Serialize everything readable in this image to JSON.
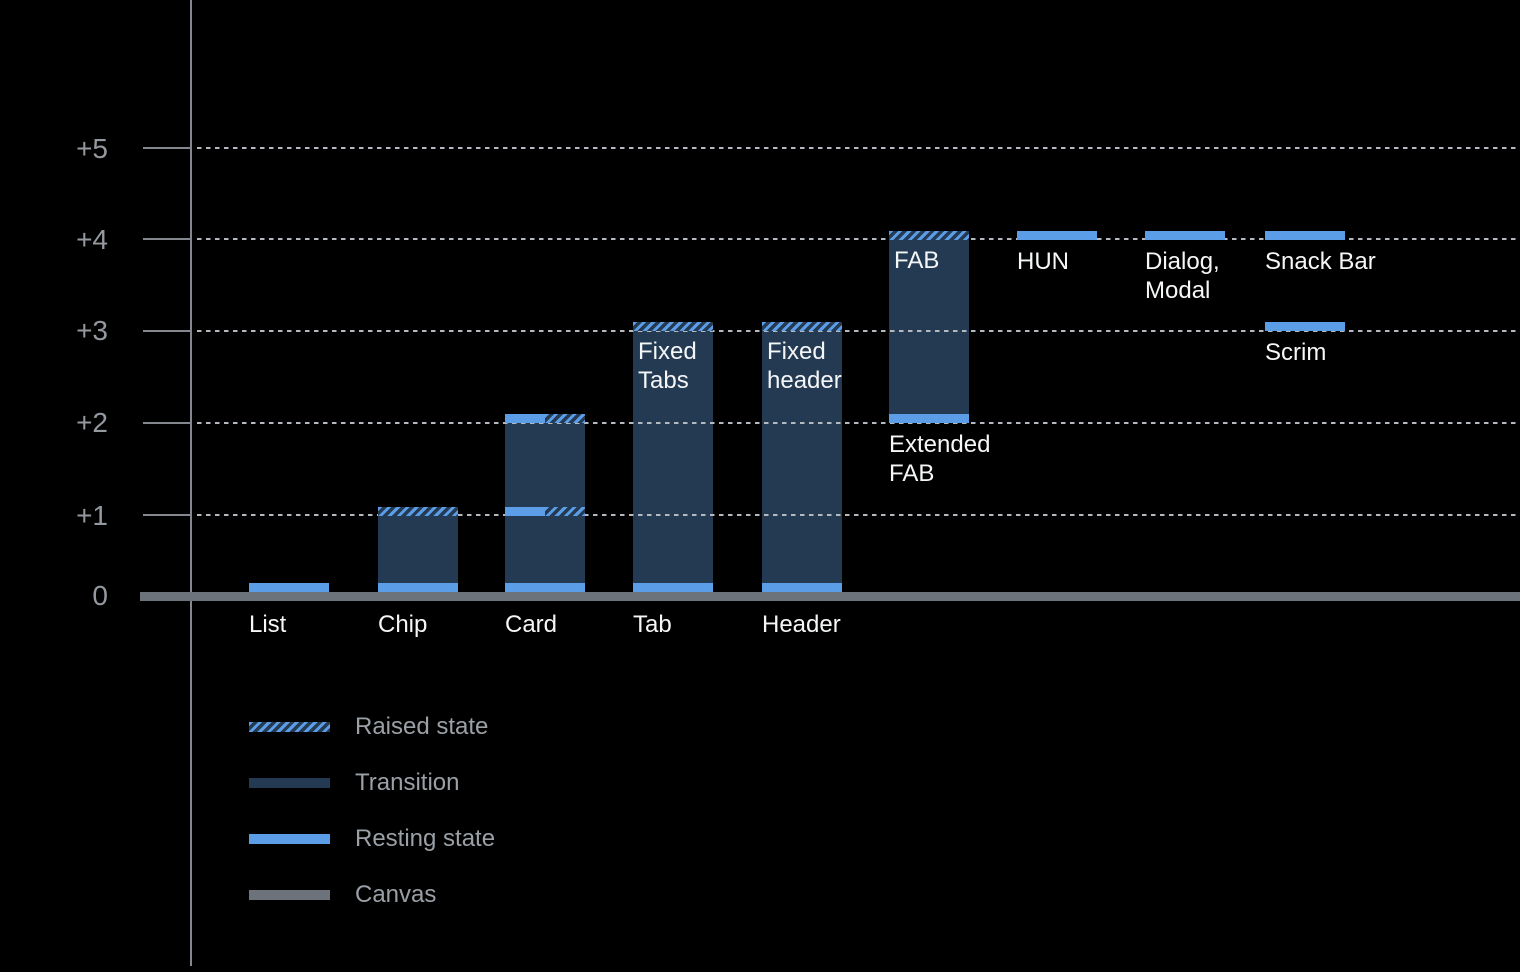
{
  "chart_data": {
    "type": "bar",
    "grid": "dotted horizontal lines at each elevation level",
    "legend_position": "bottom-left",
    "ylim": [
      0,
      5.5
    ],
    "yticks": [
      {
        "value": 0,
        "label": "0"
      },
      {
        "value": 1,
        "label": "+1"
      },
      {
        "value": 2,
        "label": "+2"
      },
      {
        "value": 3,
        "label": "+3"
      },
      {
        "value": 4,
        "label": "+4"
      },
      {
        "value": 5,
        "label": "+5"
      }
    ],
    "bars": [
      {
        "name": "list",
        "label": "List",
        "label_placement": "axis",
        "column": 0,
        "segments": [
          {
            "kind": "resting",
            "level": 0
          }
        ]
      },
      {
        "name": "chip",
        "label": "Chip",
        "label_placement": "axis",
        "column": 1,
        "segments": [
          {
            "kind": "transition",
            "from": 0,
            "to": 1
          },
          {
            "kind": "resting",
            "level": 0
          },
          {
            "kind": "raised",
            "level": 1
          }
        ]
      },
      {
        "name": "card",
        "label": "Card",
        "label_placement": "axis",
        "column": 2,
        "segments": [
          {
            "kind": "transition",
            "from": 0,
            "to": 2
          },
          {
            "kind": "resting",
            "level": 0
          },
          {
            "kind": "resting-raised-split",
            "level": 1
          },
          {
            "kind": "resting-raised-split",
            "level": 2
          }
        ]
      },
      {
        "name": "tab",
        "label": "Tab",
        "label_placement": "axis",
        "column": 3,
        "inner_label": "Fixed\nTabs",
        "segments": [
          {
            "kind": "transition",
            "from": 0,
            "to": 3
          },
          {
            "kind": "resting",
            "level": 0
          },
          {
            "kind": "raised",
            "level": 3
          }
        ]
      },
      {
        "name": "header",
        "label": "Header",
        "label_placement": "axis",
        "column": 4,
        "inner_label": "Fixed\nheader",
        "segments": [
          {
            "kind": "transition",
            "from": 0,
            "to": 3
          },
          {
            "kind": "resting",
            "level": 0
          },
          {
            "kind": "raised",
            "level": 3
          }
        ]
      },
      {
        "name": "fab",
        "label": "Extended\nFAB",
        "label_placement": "bar",
        "column": 5,
        "inner_label": "FAB",
        "segments": [
          {
            "kind": "transition",
            "from": 2,
            "to": 4
          },
          {
            "kind": "resting",
            "level": 2
          },
          {
            "kind": "raised",
            "level": 4
          }
        ]
      },
      {
        "name": "hun",
        "label": "HUN",
        "label_placement": "bar",
        "column": 6,
        "segments": [
          {
            "kind": "resting",
            "level": 4
          }
        ]
      },
      {
        "name": "dialog-modal",
        "label": "Dialog,\nModal",
        "label_placement": "bar",
        "column": 7,
        "segments": [
          {
            "kind": "resting",
            "level": 4
          }
        ]
      },
      {
        "name": "snack-bar",
        "label": "Snack Bar",
        "label_placement": "bar",
        "column": 8,
        "segments": [
          {
            "kind": "resting",
            "level": 4
          }
        ]
      },
      {
        "name": "scrim",
        "label": "Scrim",
        "label_placement": "bar",
        "column": 8,
        "segments": [
          {
            "kind": "resting",
            "level": 3
          }
        ]
      }
    ],
    "legend": [
      {
        "kind": "raised",
        "label": "Raised state"
      },
      {
        "kind": "transition",
        "label": "Transition"
      },
      {
        "kind": "resting",
        "label": "Resting state"
      },
      {
        "kind": "canvas",
        "label": "Canvas"
      }
    ],
    "colors": {
      "bg": "#000000",
      "resting": "#5c9de8",
      "transition": "#233a52",
      "canvas": "#6d737a",
      "grid": "#b4b9bf",
      "axis": "#84888e",
      "tick_text": "#94999f",
      "label_text": "#f5f6f7",
      "legend_text": "#9aa0a6"
    }
  }
}
